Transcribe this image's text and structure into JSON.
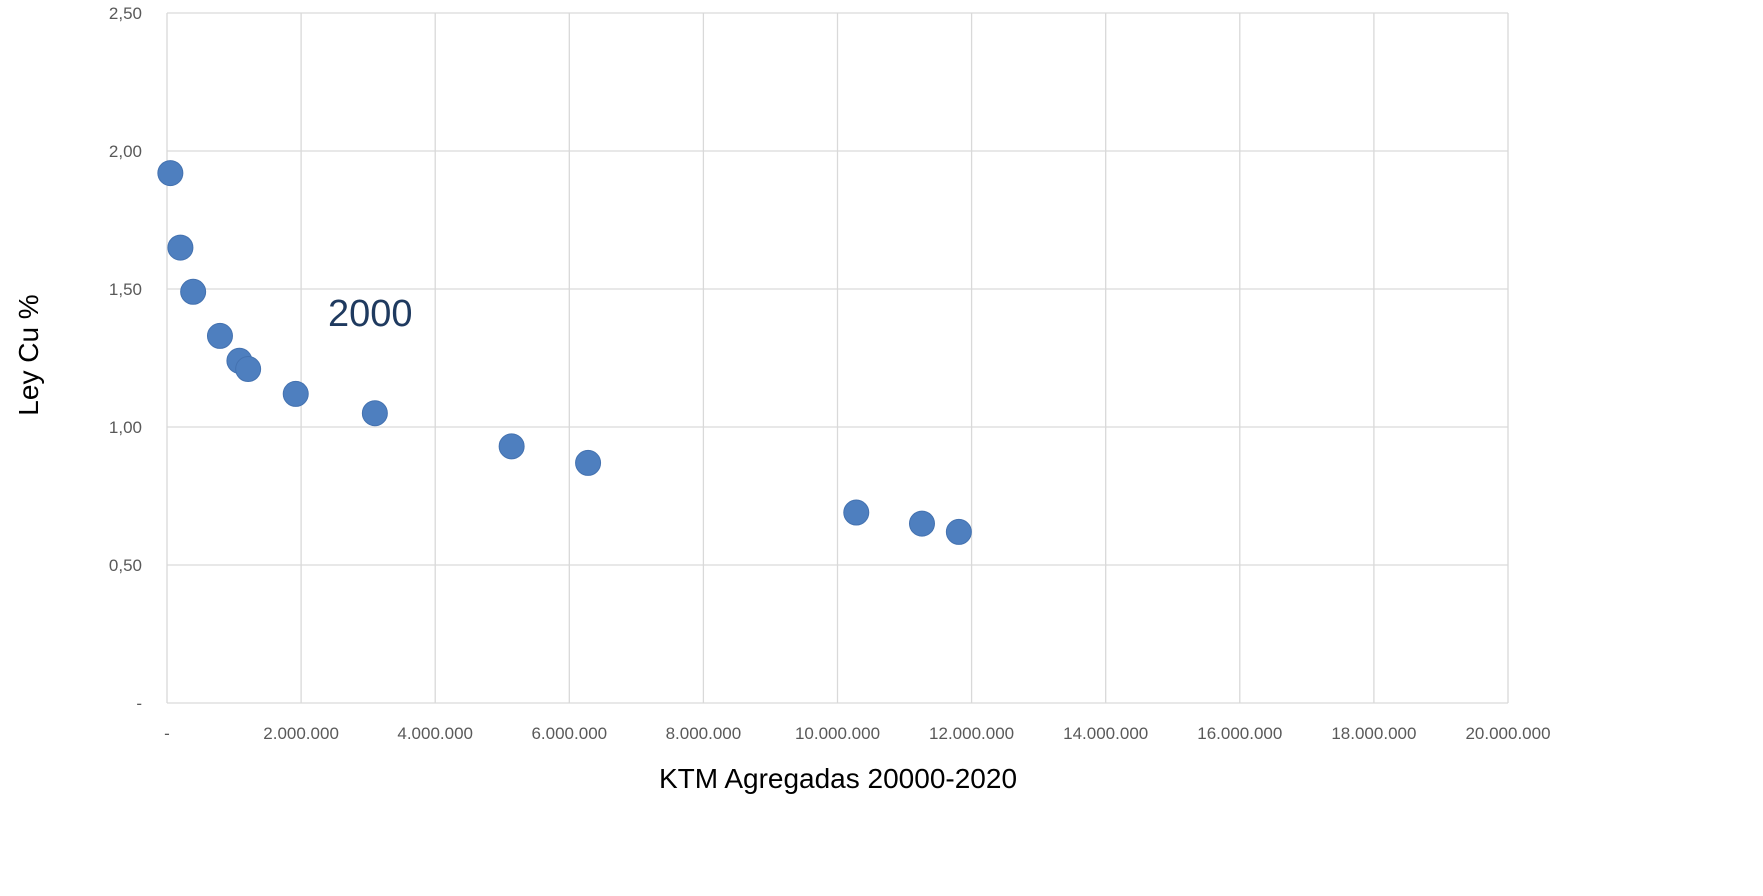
{
  "chart_data": {
    "type": "scatter",
    "title": "",
    "xlabel": "KTM Agregadas 20000-2020",
    "ylabel": "Ley Cu %",
    "xlim": [
      0,
      20000000
    ],
    "ylim": [
      0,
      2.5
    ],
    "grid": true,
    "marker_color": "#4e7fbf",
    "grid_color": "#d9d9d9",
    "annotation": "2000",
    "x_ticks": [
      {
        "value": 0,
        "label": "-"
      },
      {
        "value": 2000000,
        "label": "2.000.000"
      },
      {
        "value": 4000000,
        "label": "4.000.000"
      },
      {
        "value": 6000000,
        "label": "6.000.000"
      },
      {
        "value": 8000000,
        "label": "8.000.000"
      },
      {
        "value": 10000000,
        "label": "10.000.000"
      },
      {
        "value": 12000000,
        "label": "12.000.000"
      },
      {
        "value": 14000000,
        "label": "14.000.000"
      },
      {
        "value": 16000000,
        "label": "16.000.000"
      },
      {
        "value": 18000000,
        "label": "18.000.000"
      },
      {
        "value": 20000000,
        "label": "20.000.000"
      }
    ],
    "y_ticks": [
      {
        "value": 0,
        "label": "-"
      },
      {
        "value": 0.5,
        "label": "0,50"
      },
      {
        "value": 1.0,
        "label": "1,00"
      },
      {
        "value": 1.5,
        "label": "1,50"
      },
      {
        "value": 2.0,
        "label": "2,00"
      },
      {
        "value": 2.5,
        "label": "2,50"
      }
    ],
    "points": [
      {
        "x": 50000,
        "y": 1.92
      },
      {
        "x": 200000,
        "y": 1.65
      },
      {
        "x": 390000,
        "y": 1.49
      },
      {
        "x": 790000,
        "y": 1.33
      },
      {
        "x": 1080000,
        "y": 1.24
      },
      {
        "x": 1210000,
        "y": 1.21
      },
      {
        "x": 1920000,
        "y": 1.12
      },
      {
        "x": 3100000,
        "y": 1.05
      },
      {
        "x": 5140000,
        "y": 0.93
      },
      {
        "x": 6280000,
        "y": 0.87
      },
      {
        "x": 10280000,
        "y": 0.69
      },
      {
        "x": 11260000,
        "y": 0.65
      },
      {
        "x": 11810000,
        "y": 0.62
      }
    ]
  }
}
